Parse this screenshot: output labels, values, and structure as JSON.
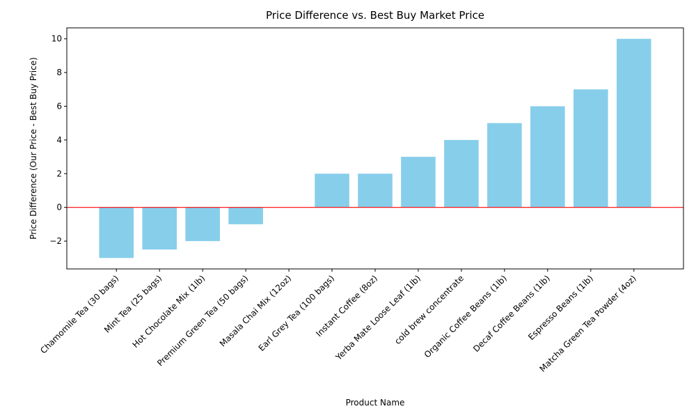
{
  "chart_data": {
    "type": "bar",
    "title": "Price Difference vs. Best Buy Market Price",
    "xlabel": "Product Name",
    "ylabel": "Price Difference (Our Price - Best Buy Price)",
    "categories": [
      "Chamomile Tea (30 bags)",
      "Mint Tea (25 bags)",
      "Hot Chocolate Mix (1lb)",
      "Premium Green Tea (50 bags)",
      "Masala Chai Mix (12oz)",
      "Earl Grey Tea (100 bags)",
      "Instant Coffee (8oz)",
      "Yerba Mate Loose Leaf (1lb)",
      "cold brew concentrate",
      "Organic Coffee Beans (1lb)",
      "Decaf Coffee Beans (1lb)",
      "Espresso Beans (1lb)",
      "Matcha Green Tea Powder (4oz)"
    ],
    "values": [
      -3,
      -2.5,
      -2,
      -1,
      0,
      2,
      2,
      3,
      4,
      5,
      6,
      7,
      10
    ],
    "ylim": [
      -3.65,
      10.65
    ],
    "yticks": [
      -2,
      0,
      2,
      4,
      6,
      8,
      10
    ],
    "grid": false,
    "reference_line": {
      "y": 0,
      "color": "#ff0000"
    },
    "bar_color": "#87ceeb"
  }
}
